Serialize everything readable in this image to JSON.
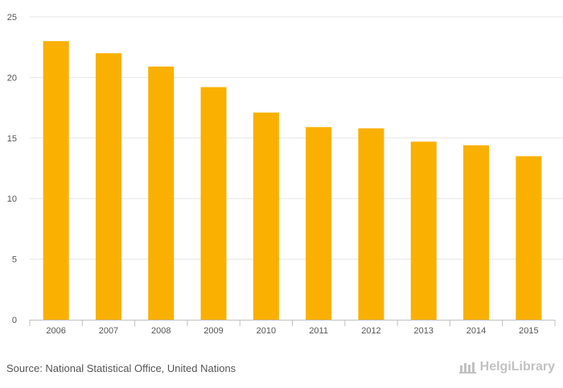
{
  "chart_data": {
    "type": "bar",
    "title": "",
    "xlabel": "",
    "ylabel": "",
    "categories": [
      "2006",
      "2007",
      "2008",
      "2009",
      "2010",
      "2011",
      "2012",
      "2013",
      "2014",
      "2015"
    ],
    "values": [
      23.0,
      22.0,
      20.9,
      19.2,
      17.1,
      15.9,
      15.8,
      14.7,
      14.4,
      13.5
    ],
    "ylim": [
      0,
      25
    ],
    "yticks": [
      0,
      5,
      10,
      15,
      20,
      25
    ],
    "grid": true,
    "bar_color": "#f9b000",
    "grid_color": "#e6e6e6"
  },
  "footer": {
    "source": "Source: National Statistical Office, United Nations",
    "brand": "HelgiLibrary"
  }
}
